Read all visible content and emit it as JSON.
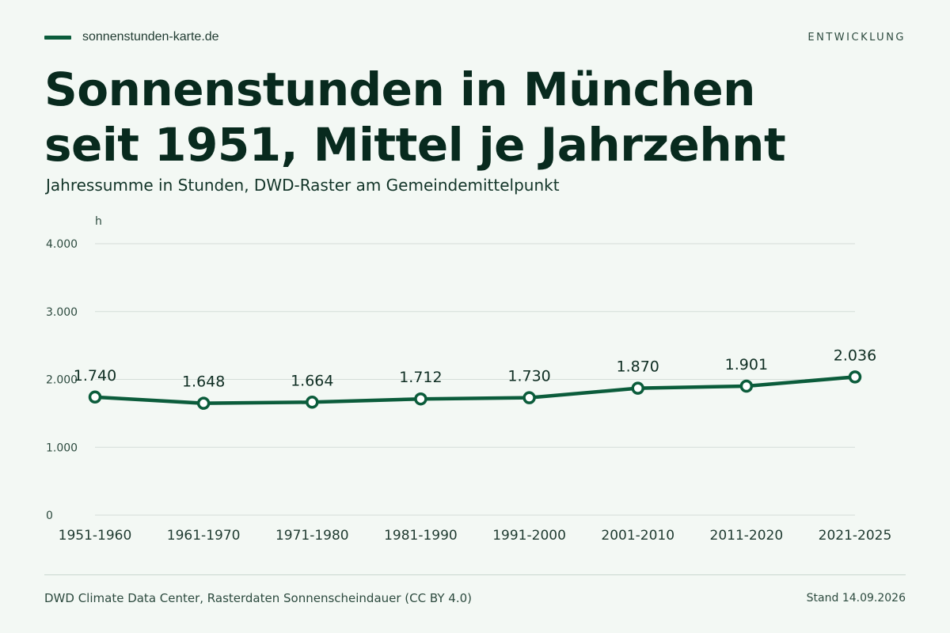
{
  "header": {
    "site": "sonnenstunden-karte.de",
    "kicker": "ENTWICKLUNG",
    "title": "Sonnenstunden in München seit 1951, Mittel je Jahrzehnt",
    "subtitle": "Jahressumme in Stunden, DWD-Raster am Gemeindemittelpunkt"
  },
  "footer": {
    "source": "DWD Climate Data Center, Rasterdaten Sonnenscheindauer (CC BY 4.0)",
    "stand": "Stand 14.09.2026"
  },
  "colors": {
    "accent": "#0b5c3b",
    "background": "#f3f8f4",
    "grid": "#d4ddd8",
    "text": "#082a1e"
  },
  "chart_data": {
    "type": "line",
    "unit_label": "h",
    "categories": [
      "1951-1960",
      "1961-1970",
      "1971-1980",
      "1981-1990",
      "1991-2000",
      "2001-2010",
      "2011-2020",
      "2021-2025"
    ],
    "values": [
      1740,
      1648,
      1664,
      1712,
      1730,
      1870,
      1901,
      2036
    ],
    "value_labels": [
      "1.740",
      "1.648",
      "1.664",
      "1.712",
      "1.730",
      "1.870",
      "1.901",
      "2.036"
    ],
    "ylim": [
      0,
      4000
    ],
    "yticks": [
      0,
      1000,
      2000,
      3000,
      4000
    ],
    "ytick_labels": [
      "0",
      "1.000",
      "2.000",
      "3.000",
      "4.000"
    ],
    "grid": true
  }
}
